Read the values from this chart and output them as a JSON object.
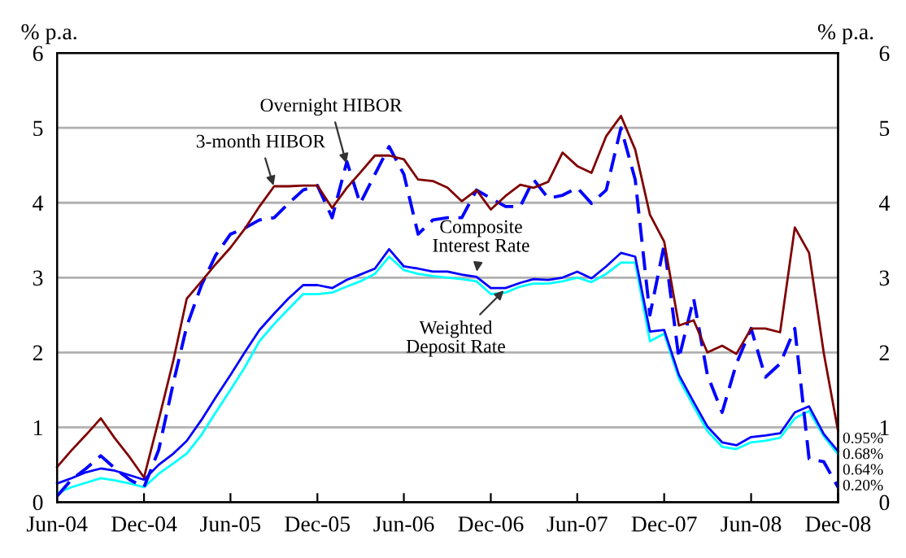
{
  "chart_data": {
    "type": "line",
    "ylabel": "% p.a.",
    "y2label": "% p.a.",
    "x": [
      "2004-06",
      "2004-07",
      "2004-08",
      "2004-09",
      "2004-10",
      "2004-11",
      "2004-12",
      "2005-01",
      "2005-02",
      "2005-03",
      "2005-04",
      "2005-05",
      "2005-06",
      "2005-07",
      "2005-08",
      "2005-09",
      "2005-10",
      "2005-11",
      "2005-12",
      "2006-01",
      "2006-02",
      "2006-03",
      "2006-04",
      "2006-05",
      "2006-06",
      "2006-07",
      "2006-08",
      "2006-09",
      "2006-10",
      "2006-11",
      "2006-12",
      "2007-01",
      "2007-02",
      "2007-03",
      "2007-04",
      "2007-05",
      "2007-06",
      "2007-07",
      "2007-08",
      "2007-09",
      "2007-10",
      "2007-11",
      "2007-12",
      "2008-01",
      "2008-02",
      "2008-03",
      "2008-04",
      "2008-05",
      "2008-06",
      "2008-07",
      "2008-08",
      "2008-09",
      "2008-10",
      "2008-11",
      "2008-12"
    ],
    "series": [
      {
        "color": "#800000",
        "line_style": "solid",
        "values": [
          0.47,
          0.69,
          0.9,
          1.12,
          0.85,
          0.6,
          0.33,
          1.1,
          1.9,
          2.72,
          2.95,
          3.18,
          3.4,
          3.65,
          3.95,
          4.22,
          4.22,
          4.23,
          4.23,
          3.93,
          4.2,
          4.4,
          4.63,
          4.63,
          4.58,
          4.31,
          4.29,
          4.2,
          4.02,
          4.17,
          3.91,
          4.09,
          4.24,
          4.2,
          4.28,
          4.67,
          4.49,
          4.4,
          4.89,
          5.16,
          4.71,
          3.84,
          3.48,
          2.36,
          2.43,
          2.0,
          2.09,
          1.98,
          2.32,
          2.32,
          2.27,
          3.67,
          3.33,
          1.99,
          0.95
        ],
        "value_labels": [
          null,
          null,
          null,
          null,
          null,
          null,
          null,
          null,
          null,
          null,
          null,
          null,
          null,
          null,
          null,
          null,
          null,
          null,
          null,
          null,
          null,
          null,
          null,
          null,
          null,
          null,
          null,
          null,
          null,
          null,
          null,
          null,
          null,
          null,
          null,
          null,
          null,
          null,
          null,
          null,
          null,
          null,
          null,
          null,
          null,
          null,
          null,
          null,
          null,
          null,
          null,
          null,
          null,
          null,
          "0.95%"
        ]
      },
      {
        "color": "#0000ff",
        "line_style": "dashed",
        "values": [
          0.08,
          0.3,
          0.45,
          0.62,
          0.45,
          0.3,
          0.2,
          0.7,
          1.6,
          2.35,
          2.9,
          3.3,
          3.58,
          3.66,
          3.77,
          3.8,
          3.99,
          4.17,
          4.23,
          3.8,
          4.55,
          3.99,
          4.38,
          4.75,
          4.38,
          3.58,
          3.77,
          3.8,
          3.8,
          4.17,
          4.06,
          3.95,
          3.95,
          4.31,
          4.06,
          4.1,
          4.2,
          3.99,
          4.17,
          5.0,
          4.31,
          2.5,
          3.44,
          1.92,
          2.72,
          1.7,
          1.2,
          1.85,
          2.32,
          1.67,
          1.85,
          2.32,
          0.58,
          0.54,
          0.2
        ],
        "value_labels": [
          null,
          null,
          null,
          null,
          null,
          null,
          null,
          null,
          null,
          null,
          null,
          null,
          null,
          null,
          null,
          null,
          null,
          null,
          null,
          null,
          null,
          null,
          null,
          null,
          null,
          null,
          null,
          null,
          null,
          null,
          null,
          null,
          null,
          null,
          null,
          null,
          null,
          null,
          null,
          null,
          null,
          null,
          null,
          null,
          null,
          null,
          null,
          null,
          null,
          null,
          null,
          null,
          null,
          null,
          "0.20%"
        ]
      },
      {
        "color": "#0000ff",
        "line_style": "solid",
        "values": [
          0.25,
          0.32,
          0.4,
          0.45,
          0.42,
          0.36,
          0.3,
          0.5,
          0.65,
          0.82,
          1.1,
          1.4,
          1.7,
          2.0,
          2.3,
          2.52,
          2.72,
          2.9,
          2.9,
          2.86,
          2.97,
          3.04,
          3.12,
          3.38,
          3.15,
          3.12,
          3.08,
          3.08,
          3.04,
          3.01,
          2.86,
          2.86,
          2.93,
          2.98,
          2.97,
          3.0,
          3.08,
          2.99,
          3.15,
          3.33,
          3.28,
          2.28,
          2.3,
          1.7,
          1.34,
          1.01,
          0.8,
          0.76,
          0.87,
          0.89,
          0.92,
          1.2,
          1.28,
          0.91,
          0.68
        ],
        "value_labels": [
          null,
          null,
          null,
          null,
          null,
          null,
          null,
          null,
          null,
          null,
          null,
          null,
          null,
          null,
          null,
          null,
          null,
          null,
          null,
          null,
          null,
          null,
          null,
          null,
          null,
          null,
          null,
          null,
          null,
          null,
          null,
          null,
          null,
          null,
          null,
          null,
          null,
          null,
          null,
          null,
          null,
          null,
          null,
          null,
          null,
          null,
          null,
          null,
          null,
          null,
          null,
          null,
          null,
          null,
          "0.68%"
        ]
      },
      {
        "color": "#00ffff",
        "line_style": "solid",
        "values": [
          0.12,
          0.2,
          0.26,
          0.32,
          0.29,
          0.25,
          0.2,
          0.38,
          0.52,
          0.65,
          0.9,
          1.2,
          1.5,
          1.8,
          2.15,
          2.38,
          2.58,
          2.78,
          2.78,
          2.8,
          2.88,
          2.95,
          3.05,
          3.28,
          3.1,
          3.05,
          3.02,
          3.0,
          2.98,
          2.95,
          2.78,
          2.8,
          2.88,
          2.92,
          2.92,
          2.95,
          3.0,
          2.94,
          3.05,
          3.2,
          3.2,
          2.15,
          2.25,
          1.65,
          1.28,
          0.95,
          0.74,
          0.71,
          0.8,
          0.82,
          0.86,
          1.12,
          1.22,
          0.88,
          0.64
        ],
        "value_labels": [
          null,
          null,
          null,
          null,
          null,
          null,
          null,
          null,
          null,
          null,
          null,
          null,
          null,
          null,
          null,
          null,
          null,
          null,
          null,
          null,
          null,
          null,
          null,
          null,
          null,
          null,
          null,
          null,
          null,
          null,
          null,
          null,
          null,
          null,
          null,
          null,
          null,
          null,
          null,
          null,
          null,
          null,
          null,
          null,
          null,
          null,
          null,
          null,
          null,
          null,
          null,
          null,
          null,
          null,
          "0.64%"
        ]
      }
    ],
    "annotations": [
      {
        "text": "Overnight HIBOR",
        "x": "2006-02",
        "y": 4.5
      },
      {
        "text": "3-month HIBOR",
        "x": "2005-09",
        "y": 4.2
      },
      {
        "text": "Composite\nInterest Rate",
        "x": "2006-11",
        "y": 3.05
      },
      {
        "text": "Weighted\nDeposit Rate",
        "x": "2007-01",
        "y": 2.85
      }
    ],
    "xlim": [
      "2004-06",
      "2008-12"
    ],
    "xticks": [
      {
        "value": "2004-06",
        "label": "Jun-04"
      },
      {
        "value": "2004-12",
        "label": "Dec-04"
      },
      {
        "value": "2005-06",
        "label": "Jun-05"
      },
      {
        "value": "2005-12",
        "label": "Dec-05"
      },
      {
        "value": "2006-06",
        "label": "Jun-06"
      },
      {
        "value": "2006-12",
        "label": "Dec-06"
      },
      {
        "value": "2007-06",
        "label": "Jun-07"
      },
      {
        "value": "2007-12",
        "label": "Dec-07"
      },
      {
        "value": "2008-06",
        "label": "Jun-08"
      },
      {
        "value": "2008-12",
        "label": "Dec-08"
      }
    ],
    "ylim": [
      0,
      6
    ],
    "yticks": [
      0,
      1,
      2,
      3,
      4,
      5,
      6
    ],
    "y2lim": [
      0,
      6
    ],
    "y2ticks": [
      0,
      1,
      2,
      3,
      4,
      5,
      6
    ],
    "grid": "y",
    "legend": false,
    "marker": "none"
  }
}
